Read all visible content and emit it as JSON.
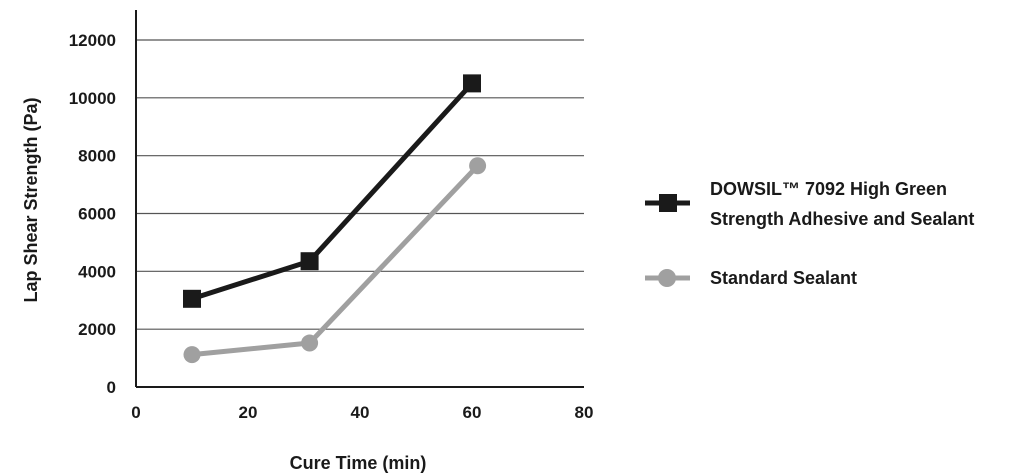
{
  "chart_data": {
    "type": "line",
    "title": "",
    "xlabel": "Cure Time (min)",
    "ylabel": "Lap Shear Strength (Pa)",
    "xlim": [
      0,
      80
    ],
    "ylim": [
      0,
      12000
    ],
    "x_ticks": [
      0,
      20,
      40,
      60,
      80
    ],
    "y_ticks": [
      0,
      2000,
      4000,
      6000,
      8000,
      10000,
      12000
    ],
    "grid": "horizontal",
    "legend_position": "right",
    "series": [
      {
        "name_lines": [
          "DOWSIL™ 7092 High Green",
          "Strength Adhesive and Sealant"
        ],
        "color": "#1a1a1a",
        "marker": "square",
        "points": [
          [
            10,
            3050
          ],
          [
            31,
            4350
          ],
          [
            60,
            10500
          ]
        ]
      },
      {
        "name": "Standard Sealant",
        "color": "#a0a0a0",
        "marker": "circle",
        "points": [
          [
            10,
            1120
          ],
          [
            31,
            1520
          ],
          [
            61,
            7650
          ]
        ]
      }
    ]
  }
}
